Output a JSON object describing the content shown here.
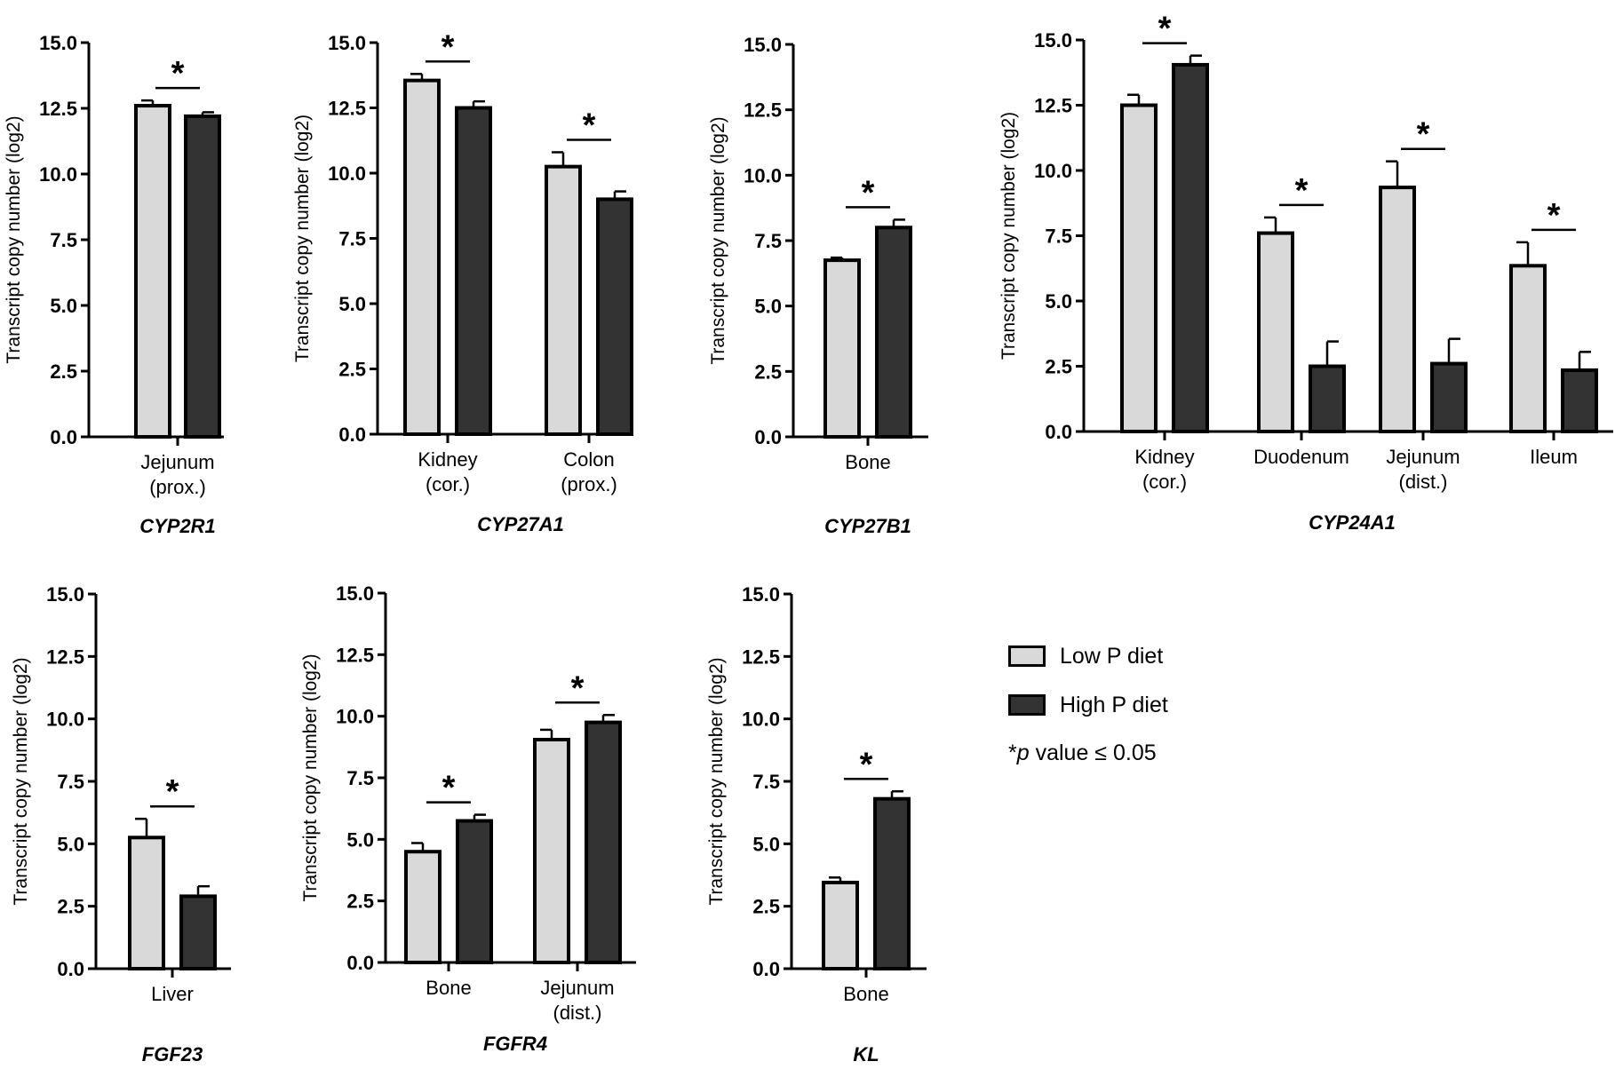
{
  "colors": {
    "low": "#d9d9d9",
    "high": "#333333",
    "stroke": "#000000"
  },
  "legend": {
    "low_label": "Low P diet",
    "high_label": "High P diet",
    "note_star": "*",
    "note_p": "p",
    "note_rest": " value ≤ 0.05"
  },
  "chart_data": [
    {
      "type": "bar",
      "title": "CYP2R1",
      "ylabel": "Transcript copy number (log2)",
      "ylim": [
        0,
        15
      ],
      "yticks": [
        "0.0",
        "2.5",
        "5.0",
        "7.5",
        "10.0",
        "12.5",
        "15.0"
      ],
      "categories": [
        [
          "Jejunum",
          "(prox.)"
        ]
      ],
      "series": [
        {
          "name": "Low P diet",
          "values": [
            12.6
          ],
          "errors": [
            0.2
          ]
        },
        {
          "name": "High P diet",
          "values": [
            12.2
          ],
          "errors": [
            0.15
          ]
        }
      ],
      "significance": [
        "*"
      ]
    },
    {
      "type": "bar",
      "title": "CYP27A1",
      "ylabel": "Transcript copy number (log2)",
      "ylim": [
        0,
        15
      ],
      "yticks": [
        "0.0",
        "2.5",
        "5.0",
        "7.5",
        "10.0",
        "12.5",
        "15.0"
      ],
      "categories": [
        [
          "Kidney",
          "(cor.)"
        ],
        [
          "Colon",
          "(prox.)"
        ]
      ],
      "series": [
        {
          "name": "Low P diet",
          "values": [
            13.55,
            10.25
          ],
          "errors": [
            0.25,
            0.55
          ]
        },
        {
          "name": "High P diet",
          "values": [
            12.5,
            9.0
          ],
          "errors": [
            0.25,
            0.3
          ]
        }
      ],
      "significance": [
        "*",
        "*"
      ]
    },
    {
      "type": "bar",
      "title": "CYP27B1",
      "ylabel": "Transcript copy number (log2)",
      "ylim": [
        0,
        15
      ],
      "yticks": [
        "0.0",
        "2.5",
        "5.0",
        "7.5",
        "10.0",
        "12.5",
        "15.0"
      ],
      "categories": [
        [
          "Bone"
        ]
      ],
      "series": [
        {
          "name": "Low P diet",
          "values": [
            6.75
          ],
          "errors": [
            0.1
          ]
        },
        {
          "name": "High P diet",
          "values": [
            8.0
          ],
          "errors": [
            0.3
          ]
        }
      ],
      "significance": [
        "*"
      ]
    },
    {
      "type": "bar",
      "title": "CYP24A1",
      "ylabel": "Transcript copy number (log2)",
      "ylim": [
        0,
        15
      ],
      "yticks": [
        "0.0",
        "2.5",
        "5.0",
        "7.5",
        "10.0",
        "12.5",
        "15.0"
      ],
      "categories": [
        [
          "Kidney",
          "(cor.)"
        ],
        [
          "Duodenum"
        ],
        [
          "Jejunum",
          "(dist.)"
        ],
        [
          "Ileum"
        ]
      ],
      "series": [
        {
          "name": "Low P diet",
          "values": [
            12.5,
            7.6,
            9.35,
            6.35
          ],
          "errors": [
            0.4,
            0.6,
            1.0,
            0.9
          ]
        },
        {
          "name": "High P diet",
          "values": [
            14.05,
            2.5,
            2.6,
            2.35
          ],
          "errors": [
            0.35,
            0.95,
            0.95,
            0.7
          ]
        }
      ],
      "significance": [
        "*",
        "*",
        "*",
        "*"
      ]
    },
    {
      "type": "bar",
      "title": "FGF23",
      "ylabel": "Transcript copy number (log2)",
      "ylim": [
        0,
        15
      ],
      "yticks": [
        "0.0",
        "2.5",
        "5.0",
        "7.5",
        "10.0",
        "12.5",
        "15.0"
      ],
      "categories": [
        [
          "Liver"
        ]
      ],
      "series": [
        {
          "name": "Low P diet",
          "values": [
            5.25
          ],
          "errors": [
            0.75
          ]
        },
        {
          "name": "High P diet",
          "values": [
            2.9
          ],
          "errors": [
            0.4
          ]
        }
      ],
      "significance": [
        "*"
      ]
    },
    {
      "type": "bar",
      "title": "FGFR4",
      "ylabel": "Transcript copy number (log2)",
      "ylim": [
        0,
        15
      ],
      "yticks": [
        "0.0",
        "2.5",
        "5.0",
        "7.5",
        "10.0",
        "12.5",
        "15.0"
      ],
      "categories": [
        [
          "Bone"
        ],
        [
          "Jejunum",
          "(dist.)"
        ]
      ],
      "series": [
        {
          "name": "Low P diet",
          "values": [
            4.5,
            9.05
          ],
          "errors": [
            0.35,
            0.4
          ]
        },
        {
          "name": "High P diet",
          "values": [
            5.75,
            9.75
          ],
          "errors": [
            0.25,
            0.3
          ]
        }
      ],
      "significance": [
        "*",
        "*"
      ]
    },
    {
      "type": "bar",
      "title": "KL",
      "ylabel": "Transcript copy number (log2)",
      "ylim": [
        0,
        15
      ],
      "yticks": [
        "0.0",
        "2.5",
        "5.0",
        "7.5",
        "10.0",
        "12.5",
        "15.0"
      ],
      "categories": [
        [
          "Bone"
        ]
      ],
      "series": [
        {
          "name": "Low P diet",
          "values": [
            3.45
          ],
          "errors": [
            0.2
          ]
        },
        {
          "name": "High P diet",
          "values": [
            6.8
          ],
          "errors": [
            0.3
          ]
        }
      ],
      "significance": [
        "*"
      ]
    }
  ]
}
